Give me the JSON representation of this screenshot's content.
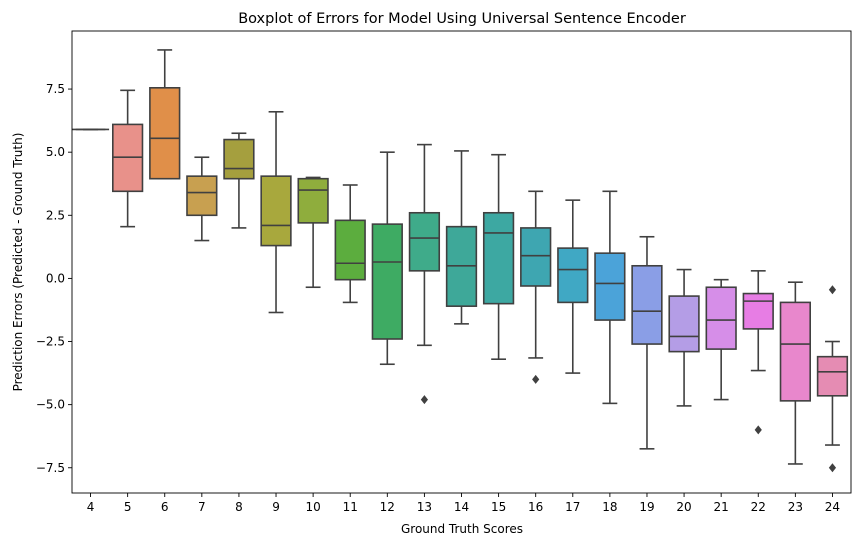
{
  "chart_data": {
    "type": "boxplot",
    "title": "Boxplot of Errors for Model Using Universal Sentence Encoder",
    "xlabel": "Ground Truth Scores",
    "ylabel": "Prediction Errors (Predicted - Ground Truth)",
    "ylim": [
      -8.5,
      9.8
    ],
    "yticks": [
      -7.5,
      -5.0,
      -2.5,
      0.0,
      2.5,
      5.0,
      7.5
    ],
    "ytick_labels": [
      "−7.5",
      "−5.0",
      "−2.5",
      "0.0",
      "2.5",
      "5.0",
      "7.5"
    ],
    "grid": false,
    "legend": "none",
    "boxes": [
      {
        "category": "4",
        "color": "#3274a1",
        "whisker_low": 5.9,
        "q1": 5.9,
        "median": 5.9,
        "q3": 5.9,
        "whisker_high": 5.9,
        "outliers": []
      },
      {
        "category": "5",
        "color": "#e8918a",
        "whisker_low": 2.05,
        "q1": 3.45,
        "median": 4.8,
        "q3": 6.1,
        "whisker_high": 7.45,
        "outliers": []
      },
      {
        "category": "6",
        "color": "#e08f49",
        "whisker_low": 3.95,
        "q1": 3.95,
        "median": 5.55,
        "q3": 7.55,
        "whisker_high": 9.05,
        "outliers": []
      },
      {
        "category": "7",
        "color": "#c8a050",
        "whisker_low": 1.5,
        "q1": 2.5,
        "median": 3.4,
        "q3": 4.05,
        "whisker_high": 4.8,
        "outliers": []
      },
      {
        "category": "8",
        "color": "#a59f3e",
        "whisker_low": 2.0,
        "q1": 3.95,
        "median": 4.35,
        "q3": 5.5,
        "whisker_high": 5.75,
        "outliers": []
      },
      {
        "category": "9",
        "color": "#a8a83d",
        "whisker_low": -1.35,
        "q1": 1.3,
        "median": 2.1,
        "q3": 4.05,
        "whisker_high": 6.6,
        "outliers": []
      },
      {
        "category": "10",
        "color": "#8fad3d",
        "whisker_low": -0.35,
        "q1": 2.2,
        "median": 3.5,
        "q3": 3.95,
        "whisker_high": 4.0,
        "outliers": []
      },
      {
        "category": "11",
        "color": "#5cad3e",
        "whisker_low": -0.95,
        "q1": -0.05,
        "median": 0.6,
        "q3": 2.3,
        "whisker_high": 3.7,
        "outliers": []
      },
      {
        "category": "12",
        "color": "#3eab63",
        "whisker_low": -3.4,
        "q1": -2.4,
        "median": 0.65,
        "q3": 2.15,
        "whisker_high": 5.0,
        "outliers": []
      },
      {
        "category": "13",
        "color": "#3fab8a",
        "whisker_low": -2.65,
        "q1": 0.3,
        "median": 1.6,
        "q3": 2.6,
        "whisker_high": 5.3,
        "outliers": [
          -4.8
        ]
      },
      {
        "category": "14",
        "color": "#3ea899",
        "whisker_low": -1.8,
        "q1": -1.1,
        "median": 0.5,
        "q3": 2.05,
        "whisker_high": 5.05,
        "outliers": []
      },
      {
        "category": "15",
        "color": "#3da8a2",
        "whisker_low": -3.2,
        "q1": -1.0,
        "median": 1.8,
        "q3": 2.6,
        "whisker_high": 4.9,
        "outliers": []
      },
      {
        "category": "16",
        "color": "#3ea6b1",
        "whisker_low": -3.15,
        "q1": -0.3,
        "median": 0.9,
        "q3": 2.0,
        "whisker_high": 3.45,
        "outliers": [
          -4.0
        ]
      },
      {
        "category": "17",
        "color": "#40a8c4",
        "whisker_low": -3.75,
        "q1": -0.95,
        "median": 0.35,
        "q3": 1.2,
        "whisker_high": 3.1,
        "outliers": []
      },
      {
        "category": "18",
        "color": "#4ba3d9",
        "whisker_low": -4.95,
        "q1": -1.65,
        "median": -0.2,
        "q3": 1.0,
        "whisker_high": 3.45,
        "outliers": []
      },
      {
        "category": "19",
        "color": "#8a9ee6",
        "whisker_low": -6.75,
        "q1": -2.6,
        "median": -1.3,
        "q3": 0.5,
        "whisker_high": 1.65,
        "outliers": []
      },
      {
        "category": "20",
        "color": "#b49de6",
        "whisker_low": -5.05,
        "q1": -2.9,
        "median": -2.3,
        "q3": -0.7,
        "whisker_high": 0.35,
        "outliers": []
      },
      {
        "category": "21",
        "color": "#d68ee8",
        "whisker_low": -4.8,
        "q1": -2.8,
        "median": -1.65,
        "q3": -0.35,
        "whisker_high": -0.05,
        "outliers": []
      },
      {
        "category": "22",
        "color": "#e77de4",
        "whisker_low": -3.65,
        "q1": -2.0,
        "median": -0.9,
        "q3": -0.6,
        "whisker_high": 0.3,
        "outliers": [
          -6.0
        ]
      },
      {
        "category": "23",
        "color": "#e887cc",
        "whisker_low": -7.35,
        "q1": -4.85,
        "median": -2.6,
        "q3": -0.95,
        "whisker_high": -0.15,
        "outliers": []
      },
      {
        "category": "24",
        "color": "#e58cb3",
        "whisker_low": -6.6,
        "q1": -4.65,
        "median": -3.7,
        "q3": -3.1,
        "whisker_high": -2.5,
        "outliers": [
          -0.45,
          -7.5
        ]
      }
    ]
  }
}
